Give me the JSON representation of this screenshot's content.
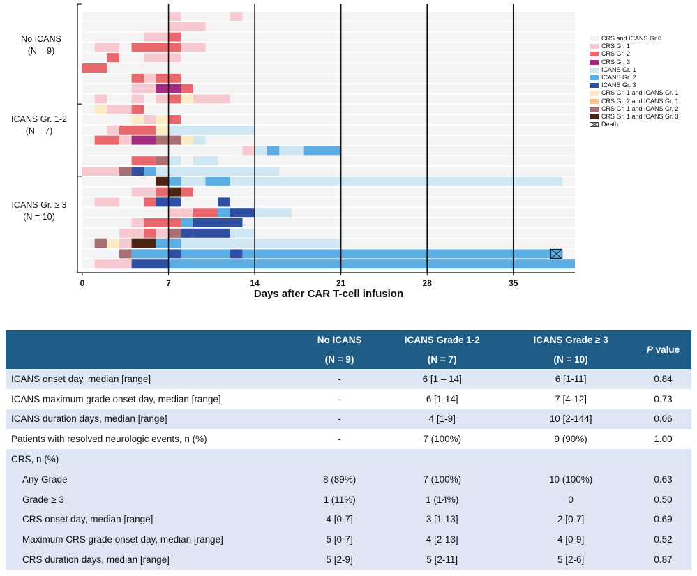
{
  "colors": {
    "none": "#f4f4f4",
    "crs1": "#f7c9d1",
    "crs2": "#e8686e",
    "crs3": "#a32c82",
    "icans1": "#cfe7f3",
    "icans2": "#5aaee3",
    "icans3": "#2e4fa2",
    "crs1_icans1": "#fbecc6",
    "crs2_icans1": "#f7c28d",
    "crs1_icans2": "#a97073",
    "crs1_icans3": "#4b2414",
    "death": "#444444"
  },
  "legend": [
    {
      "key": "none",
      "label": "CRS and ICANS Gr.0"
    },
    {
      "key": "crs1",
      "label": "CRS Gr. 1"
    },
    {
      "key": "crs2",
      "label": "CRS Gr. 2"
    },
    {
      "key": "crs3",
      "label": "CRS Gr. 3"
    },
    {
      "key": "icans1",
      "label": "ICANS Gr. 1"
    },
    {
      "key": "icans2",
      "label": "ICANS Gr. 2"
    },
    {
      "key": "icans3",
      "label": "ICANS Gr. 3"
    },
    {
      "key": "crs1_icans1",
      "label": "CRS Gr. 1 and ICANS Gr. 1"
    },
    {
      "key": "crs2_icans1",
      "label": "CRS Gr. 2 and ICANS Gr. 1"
    },
    {
      "key": "crs1_icans2",
      "label": "CRS Gr. 1 and ICANS Gr. 2"
    },
    {
      "key": "crs1_icans3",
      "label": "CRS Gr. 1 and ICANS Gr. 3"
    },
    {
      "key": "death",
      "label": "Death"
    }
  ],
  "groups": [
    {
      "line1": "No ICANS",
      "line2": "(N = 9)"
    },
    {
      "line1": "ICANS Gr. 1-2",
      "line2": "(N = 7)"
    },
    {
      "line1": "ICANS Gr. ≥ 3",
      "line2": "(N = 10)"
    }
  ],
  "chart_data": {
    "type": "swimmer",
    "xlabel": "Days after CAR T-cell infusion",
    "xlim": [
      0,
      40
    ],
    "xticks": [
      0,
      7,
      14,
      21,
      28,
      35
    ],
    "tick_labels": [
      "0",
      "7",
      "14",
      "21",
      "28",
      "35"
    ],
    "vlines": [
      7,
      14,
      21,
      28,
      35
    ],
    "patients": [
      [
        {
          "s": 7,
          "e": 8,
          "c": "crs1"
        },
        {
          "s": 12,
          "e": 13,
          "c": "crs1"
        }
      ],
      [
        {
          "s": 7,
          "e": 8,
          "c": "crs1"
        },
        {
          "s": 8,
          "e": 10,
          "c": "crs1"
        }
      ],
      [
        {
          "s": 5,
          "e": 7,
          "c": "crs1"
        },
        {
          "s": 7,
          "e": 8,
          "c": "crs2"
        }
      ],
      [
        {
          "s": 1,
          "e": 3,
          "c": "crs1"
        },
        {
          "s": 4,
          "e": 8,
          "c": "crs2"
        },
        {
          "s": 8,
          "e": 10,
          "c": "crs1"
        }
      ],
      [
        {
          "s": 2,
          "e": 3,
          "c": "crs2"
        },
        {
          "s": 5,
          "e": 8,
          "c": "crs1"
        }
      ],
      [
        {
          "s": 0,
          "e": 2,
          "c": "crs2"
        }
      ],
      [
        {
          "s": 4,
          "e": 5,
          "c": "crs2"
        },
        {
          "s": 5,
          "e": 6,
          "c": "crs1"
        },
        {
          "s": 6,
          "e": 8,
          "c": "crs2"
        }
      ],
      [
        {
          "s": 4,
          "e": 6,
          "c": "crs1"
        },
        {
          "s": 6,
          "e": 8,
          "c": "crs3"
        },
        {
          "s": 8,
          "e": 9,
          "c": "crs2"
        }
      ],
      [
        {
          "s": 1,
          "e": 2,
          "c": "crs1"
        },
        {
          "s": 4,
          "e": 5,
          "c": "crs1"
        },
        {
          "s": 6,
          "e": 7,
          "c": "crs1"
        },
        {
          "s": 7,
          "e": 8,
          "c": "crs2"
        },
        {
          "s": 8,
          "e": 9,
          "c": "crs1_icans1"
        },
        {
          "s": 9,
          "e": 12,
          "c": "crs1"
        }
      ],
      [
        {
          "s": 1,
          "e": 2,
          "c": "crs1_icans1"
        },
        {
          "s": 2,
          "e": 4,
          "c": "crs1"
        },
        {
          "s": 4,
          "e": 5,
          "c": "crs2"
        }
      ],
      [
        {
          "s": 4,
          "e": 5,
          "c": "crs1_icans1"
        },
        {
          "s": 5,
          "e": 6,
          "c": "crs1"
        },
        {
          "s": 6,
          "e": 7,
          "c": "crs1_icans1"
        },
        {
          "s": 7,
          "e": 8,
          "c": "crs2"
        }
      ],
      [
        {
          "s": 2,
          "e": 3,
          "c": "crs1"
        },
        {
          "s": 3,
          "e": 6,
          "c": "crs2"
        },
        {
          "s": 6,
          "e": 7,
          "c": "crs1_icans1"
        },
        {
          "s": 7,
          "e": 8,
          "c": "icans1"
        },
        {
          "s": 8,
          "e": 14,
          "c": "icans1"
        }
      ],
      [
        {
          "s": 1,
          "e": 3,
          "c": "crs2"
        },
        {
          "s": 3,
          "e": 4,
          "c": "crs1"
        },
        {
          "s": 4,
          "e": 6,
          "c": "crs3"
        },
        {
          "s": 6,
          "e": 8,
          "c": "crs1_icans2"
        },
        {
          "s": 8,
          "e": 9,
          "c": "crs1_icans1"
        },
        {
          "s": 9,
          "e": 10,
          "c": "icans1"
        }
      ],
      [
        {
          "s": 13,
          "e": 14,
          "c": "crs1"
        },
        {
          "s": 14,
          "e": 15,
          "c": "icans1"
        },
        {
          "s": 15,
          "e": 16,
          "c": "icans2"
        },
        {
          "s": 16,
          "e": 18,
          "c": "icans1"
        },
        {
          "s": 18,
          "e": 21,
          "c": "icans2"
        }
      ],
      [
        {
          "s": 4,
          "e": 6,
          "c": "crs2"
        },
        {
          "s": 6,
          "e": 7,
          "c": "crs1_icans2"
        },
        {
          "s": 7,
          "e": 8,
          "c": "icans1"
        },
        {
          "s": 9,
          "e": 11,
          "c": "icans1"
        }
      ],
      [
        {
          "s": 0,
          "e": 3,
          "c": "crs1"
        },
        {
          "s": 3,
          "e": 4,
          "c": "crs1_icans2"
        },
        {
          "s": 4,
          "e": 5,
          "c": "icans3"
        },
        {
          "s": 5,
          "e": 6,
          "c": "icans2"
        },
        {
          "s": 6,
          "e": 16,
          "c": "icans1"
        }
      ],
      [
        {
          "s": 6,
          "e": 7,
          "c": "crs1_icans3"
        },
        {
          "s": 7,
          "e": 8,
          "c": "icans2"
        },
        {
          "s": 8,
          "e": 9,
          "c": "icans1"
        },
        {
          "s": 9,
          "e": 10,
          "c": "icans1"
        },
        {
          "s": 10,
          "e": 12,
          "c": "icans2"
        },
        {
          "s": 12,
          "e": 39,
          "c": "icans1"
        }
      ],
      [
        {
          "s": 4,
          "e": 6,
          "c": "crs1"
        },
        {
          "s": 6,
          "e": 7,
          "c": "crs2"
        },
        {
          "s": 7,
          "e": 8,
          "c": "crs1_icans3"
        },
        {
          "s": 8,
          "e": 9,
          "c": "crs2"
        }
      ],
      [
        {
          "s": 1,
          "e": 3,
          "c": "crs1"
        },
        {
          "s": 5,
          "e": 6,
          "c": "crs2"
        },
        {
          "s": 6,
          "e": 8,
          "c": "icans3"
        },
        {
          "s": 11,
          "e": 12,
          "c": "icans3"
        }
      ],
      [
        {
          "s": 7,
          "e": 8,
          "c": "crs1"
        },
        {
          "s": 8,
          "e": 9,
          "c": "crs1"
        },
        {
          "s": 9,
          "e": 11,
          "c": "crs2"
        },
        {
          "s": 11,
          "e": 12,
          "c": "icans2"
        },
        {
          "s": 12,
          "e": 14,
          "c": "icans3"
        },
        {
          "s": 14,
          "e": 17,
          "c": "icans1"
        }
      ],
      [
        {
          "s": 4,
          "e": 5,
          "c": "crs1"
        },
        {
          "s": 5,
          "e": 8,
          "c": "crs2"
        },
        {
          "s": 8,
          "e": 9,
          "c": "icans2"
        },
        {
          "s": 9,
          "e": 13,
          "c": "icans3"
        }
      ],
      [
        {
          "s": 3,
          "e": 5,
          "c": "crs1"
        },
        {
          "s": 5,
          "e": 6,
          "c": "crs2"
        },
        {
          "s": 6,
          "e": 7,
          "c": "crs1"
        },
        {
          "s": 7,
          "e": 8,
          "c": "crs1_icans2"
        },
        {
          "s": 8,
          "e": 9,
          "c": "icans3"
        },
        {
          "s": 9,
          "e": 12,
          "c": "icans3"
        },
        {
          "s": 12,
          "e": 14,
          "c": "icans1"
        }
      ],
      [
        {
          "s": 1,
          "e": 2,
          "c": "crs1_icans2"
        },
        {
          "s": 2,
          "e": 3,
          "c": "crs1_icans1"
        },
        {
          "s": 3,
          "e": 4,
          "c": "crs1"
        },
        {
          "s": 4,
          "e": 6,
          "c": "crs1_icans3"
        },
        {
          "s": 6,
          "e": 7,
          "c": "icans2"
        },
        {
          "s": 7,
          "e": 8,
          "c": "icans2"
        },
        {
          "s": 8,
          "e": 21,
          "c": "icans1"
        }
      ],
      [
        {
          "s": 3,
          "e": 4,
          "c": "crs1_icans2"
        },
        {
          "s": 4,
          "e": 7,
          "c": "icans2"
        },
        {
          "s": 7,
          "e": 8,
          "c": "icans3"
        },
        {
          "s": 8,
          "e": 12,
          "c": "icans2"
        },
        {
          "s": 12,
          "e": 13,
          "c": "icans3"
        },
        {
          "s": 13,
          "e": 39,
          "c": "icans2"
        }
      ],
      [
        {
          "s": 1,
          "e": 4,
          "c": "crs1"
        },
        {
          "s": 4,
          "e": 7,
          "c": "icans3"
        },
        {
          "s": 7,
          "e": 40,
          "c": "icans2"
        }
      ]
    ],
    "death": {
      "row": 23,
      "day": 38.5
    }
  },
  "table": {
    "headers": [
      {
        "line1": "",
        "line2": ""
      },
      {
        "line1": "No ICANS",
        "line2": "(N = 9)"
      },
      {
        "line1": "ICANS Grade 1-2",
        "line2": "(N = 7)"
      },
      {
        "line1": "ICANS Grade ≥ 3",
        "line2": "(N = 10)"
      },
      {
        "line1": "P value",
        "line2": ""
      }
    ],
    "pvalue_italic": "P",
    "pvalue_rest": " value",
    "rows": [
      {
        "label": "ICANS onset day, median [range]",
        "c1": "-",
        "c2": "6 [1 – 14]",
        "c3": "6 [1-11]",
        "p": "0.84",
        "shade": true,
        "indent": false
      },
      {
        "label": "ICANS maximum grade onset day, median [range]",
        "c1": "-",
        "c2": "6 [1-14]",
        "c3": "7 [4-12]",
        "p": "0.73",
        "shade": false,
        "indent": false
      },
      {
        "label": "ICANS duration days, median [range]",
        "c1": "-",
        "c2": "4 [1-9]",
        "c3": "10 [2-144]",
        "p": "0.06",
        "shade": true,
        "indent": false
      },
      {
        "label": "Patients with resolved neurologic events, n (%)",
        "c1": "-",
        "c2": "7 (100%)",
        "c3": "9 (90%)",
        "p": "1.00",
        "shade": false,
        "indent": false
      },
      {
        "label": "CRS, n (%)",
        "c1": "",
        "c2": "",
        "c3": "",
        "p": "",
        "shade": true,
        "indent": false
      },
      {
        "label": "Any Grade",
        "c1": "8 (89%)",
        "c2": "7 (100%)",
        "c3": "10 (100%)",
        "p": "0.63",
        "shade": true,
        "indent": true
      },
      {
        "label": "Grade ≥ 3",
        "c1": "1 (11%)",
        "c2": "1 (14%)",
        "c3": "0",
        "p": "0.50",
        "shade": true,
        "indent": true
      },
      {
        "label": "CRS onset day, median [range]",
        "c1": "4 [0-7]",
        "c2": "3 [1-13]",
        "c3": "2 [0-7]",
        "p": "0.69",
        "shade": true,
        "indent": true
      },
      {
        "label": "Maximum CRS grade onset day, median [range]",
        "c1": "5 [0-7]",
        "c2": "4 [2-13]",
        "c3": "4 [0-9]",
        "p": "0.52",
        "shade": true,
        "indent": true
      },
      {
        "label": "CRS duration days, median [range]",
        "c1": "5 [2-9]",
        "c2": "5 [2-11]",
        "c3": "5 [2-6]",
        "p": "0.87",
        "shade": true,
        "indent": true
      }
    ]
  }
}
